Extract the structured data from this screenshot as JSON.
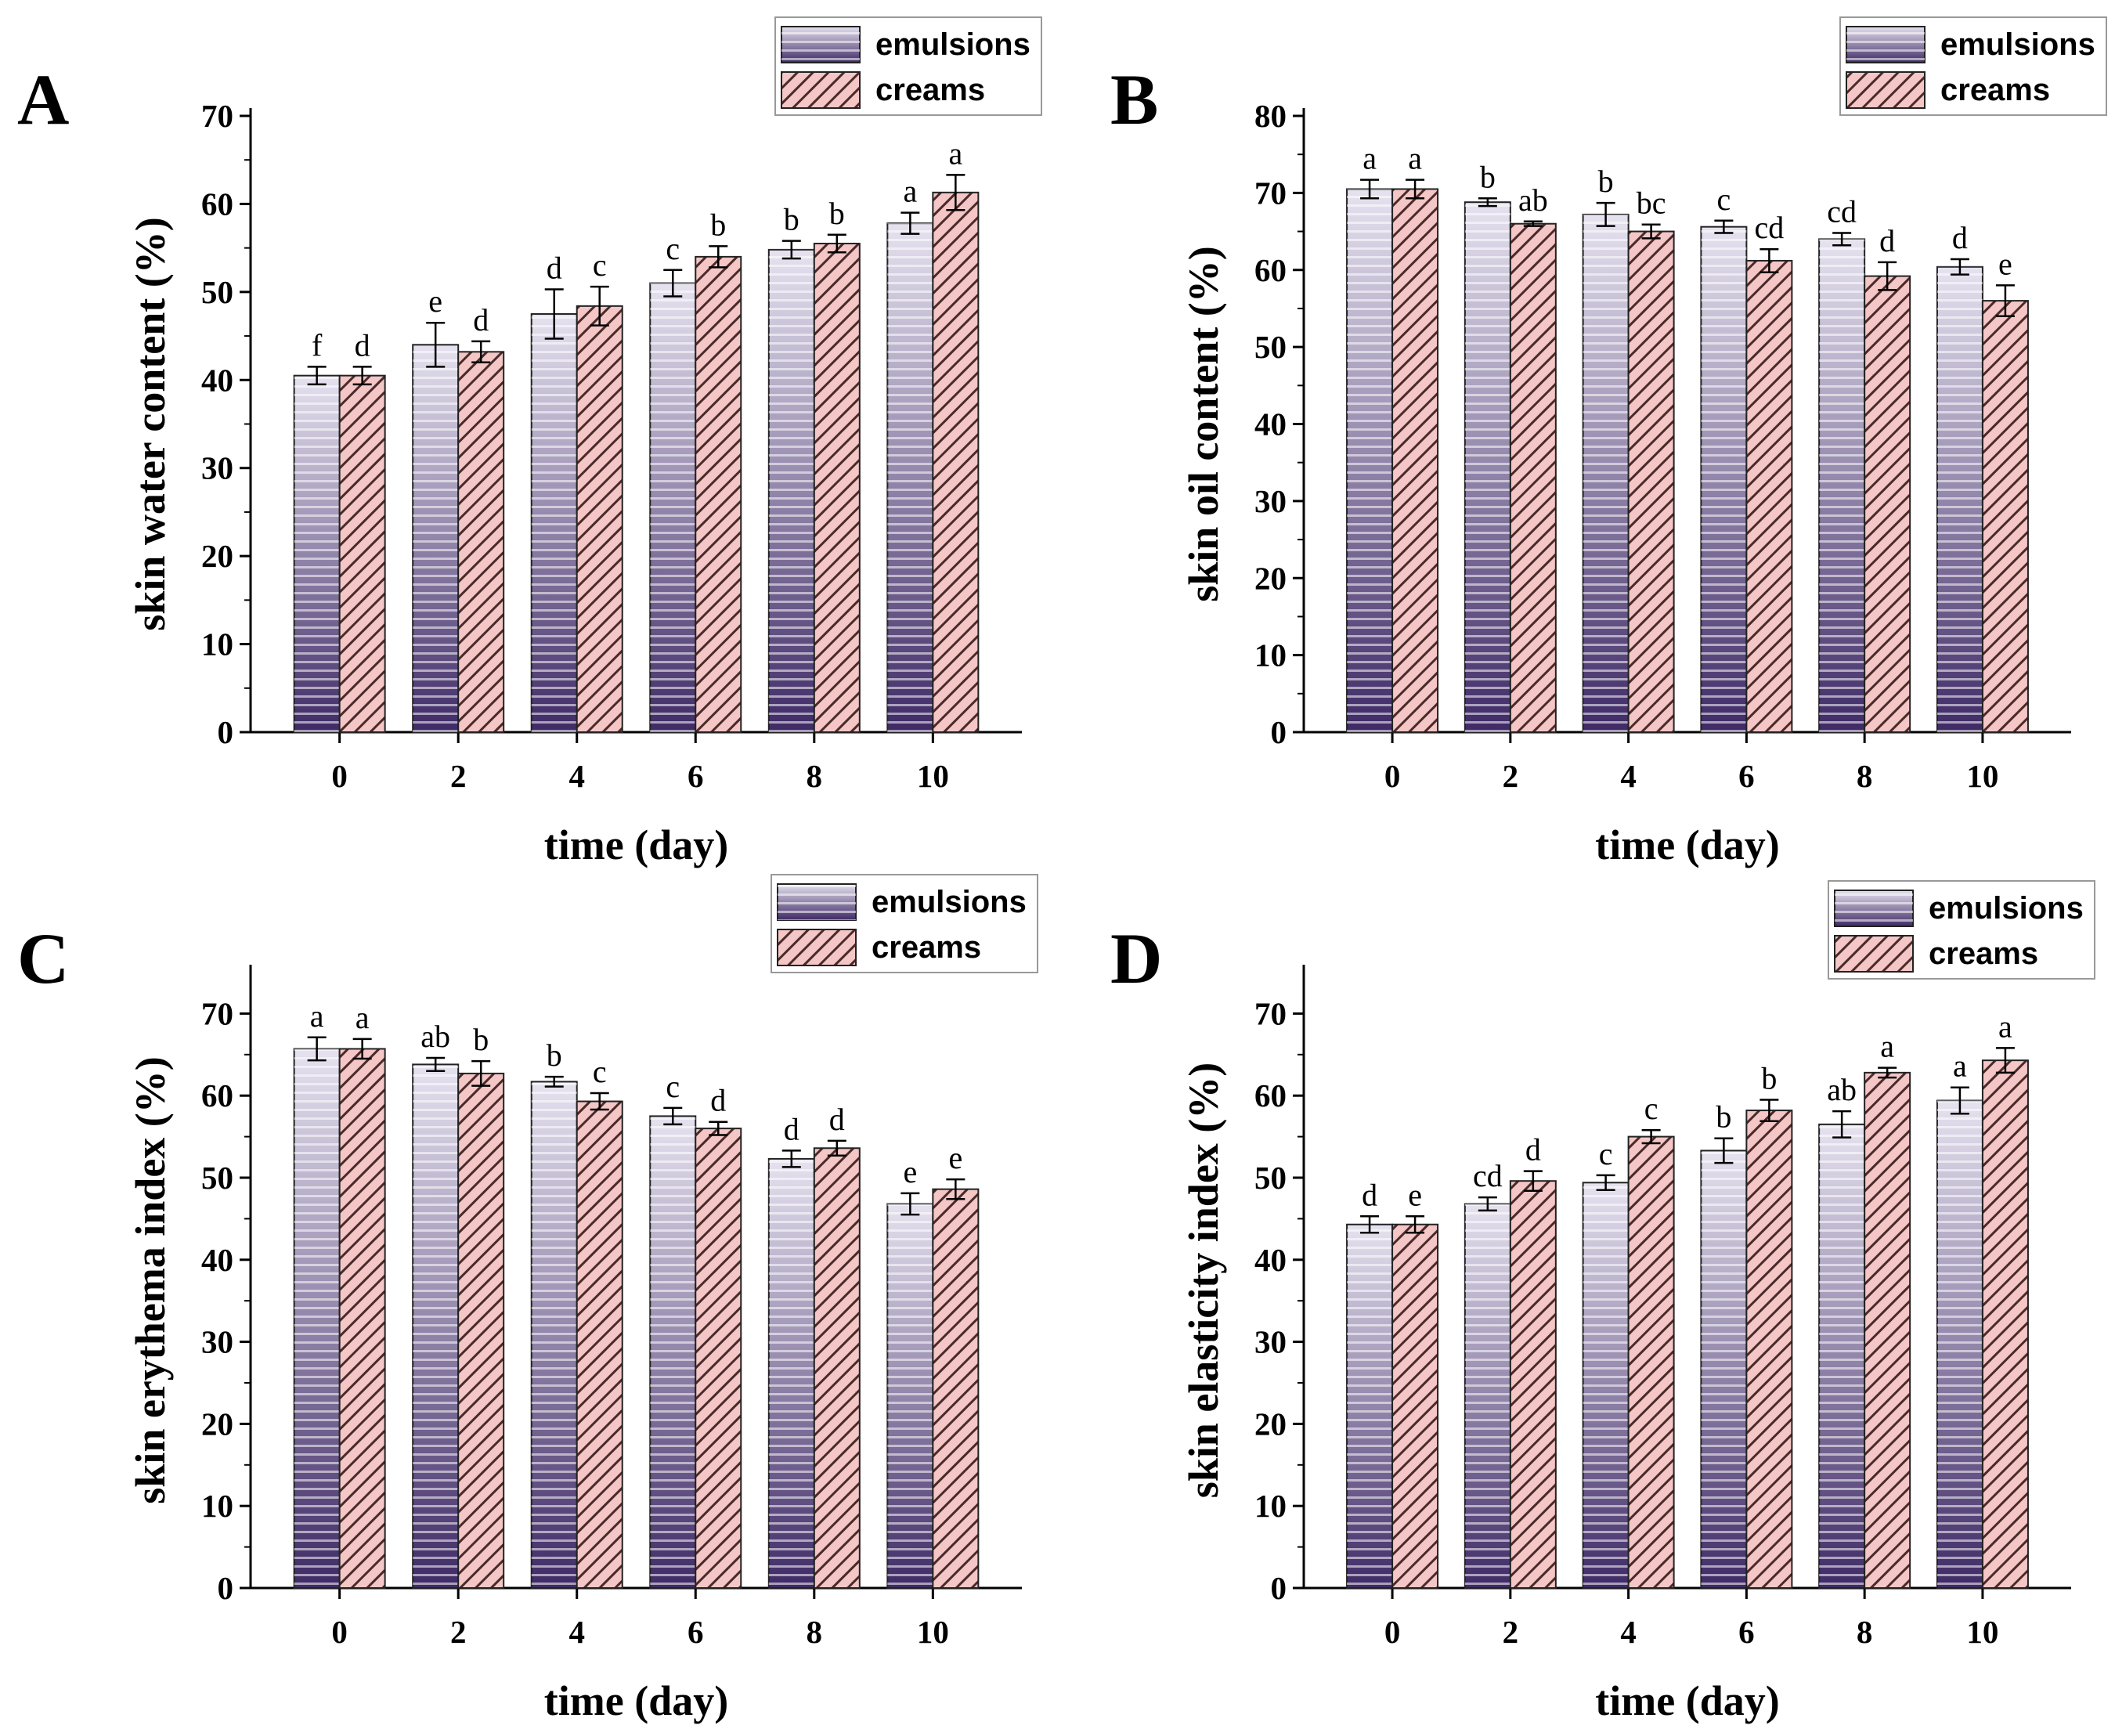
{
  "colors": {
    "emulsions_dark": "#3f2a66",
    "emulsions_light": "#e6e2ef",
    "creams_fill": "#f4c6c6",
    "creams_hatch": "#4a2a2a"
  },
  "legend": {
    "emulsions": "emulsions",
    "creams": "creams"
  },
  "chart_data": [
    {
      "panel": "A",
      "type": "bar",
      "xlabel": "time (day)",
      "ylabel": "skin water content (%)",
      "categories": [
        "0",
        "2",
        "4",
        "6",
        "8",
        "10"
      ],
      "ylim": [
        0,
        70
      ],
      "yticks": [
        0,
        10,
        20,
        30,
        40,
        50,
        60,
        70
      ],
      "legend_position": "top-right",
      "series": [
        {
          "name": "emulsions",
          "values": [
            40.5,
            44.0,
            47.5,
            51.0,
            54.8,
            57.8
          ],
          "errors": [
            1.0,
            2.5,
            2.8,
            1.5,
            1.0,
            1.2
          ],
          "labels": [
            "f",
            "e",
            "d",
            "c",
            "b",
            "a"
          ]
        },
        {
          "name": "creams",
          "values": [
            40.5,
            43.2,
            48.4,
            54.0,
            55.5,
            61.3
          ],
          "errors": [
            1.0,
            1.2,
            2.2,
            1.2,
            1.0,
            2.0
          ],
          "labels": [
            "d",
            "d",
            "c",
            "b",
            "b",
            "a"
          ]
        }
      ]
    },
    {
      "panel": "B",
      "type": "bar",
      "xlabel": "time (day)",
      "ylabel": "skin oil content (%)",
      "categories": [
        "0",
        "2",
        "4",
        "6",
        "8",
        "10"
      ],
      "ylim": [
        0,
        80
      ],
      "yticks": [
        0,
        10,
        20,
        30,
        40,
        50,
        60,
        70,
        80
      ],
      "legend_position": "top-right",
      "series": [
        {
          "name": "emulsions",
          "values": [
            70.5,
            68.8,
            67.2,
            65.6,
            64.0,
            60.4
          ],
          "errors": [
            1.2,
            0.5,
            1.5,
            0.8,
            0.8,
            1.0
          ],
          "labels": [
            "a",
            "b",
            "b",
            "c",
            "cd",
            "d"
          ]
        },
        {
          "name": "creams",
          "values": [
            70.5,
            66.0,
            65.0,
            61.2,
            59.2,
            56.0
          ],
          "errors": [
            1.2,
            0.3,
            0.9,
            1.5,
            1.8,
            2.0
          ],
          "labels": [
            "a",
            "ab",
            "bc",
            "cd",
            "d",
            "e"
          ]
        }
      ]
    },
    {
      "panel": "C",
      "type": "bar",
      "xlabel": "time (day)",
      "ylabel": "skin erythema index (%)",
      "categories": [
        "0",
        "2",
        "4",
        "6",
        "8",
        "10"
      ],
      "ylim": [
        0,
        75
      ],
      "yticks": [
        0,
        10,
        20,
        30,
        40,
        50,
        60,
        70
      ],
      "legend_position": "top-right",
      "series": [
        {
          "name": "emulsions",
          "values": [
            65.7,
            63.8,
            61.7,
            57.5,
            52.3,
            46.8
          ],
          "errors": [
            1.4,
            0.8,
            0.6,
            1.0,
            1.0,
            1.3
          ],
          "labels": [
            "a",
            "ab",
            "b",
            "c",
            "d",
            "e"
          ]
        },
        {
          "name": "creams",
          "values": [
            65.7,
            62.7,
            59.3,
            56.0,
            53.6,
            48.6
          ],
          "errors": [
            1.2,
            1.5,
            1.0,
            0.8,
            0.9,
            1.2
          ],
          "labels": [
            "a",
            "b",
            "c",
            "d",
            "d",
            "e"
          ]
        }
      ]
    },
    {
      "panel": "D",
      "type": "bar",
      "xlabel": "time (day)",
      "ylabel": "skin elasticity index (%)",
      "categories": [
        "0",
        "2",
        "4",
        "6",
        "8",
        "10"
      ],
      "ylim": [
        0,
        75
      ],
      "yticks": [
        0,
        10,
        20,
        30,
        40,
        50,
        60,
        70
      ],
      "legend_position": "top-right",
      "series": [
        {
          "name": "emulsions",
          "values": [
            44.3,
            46.8,
            49.4,
            53.3,
            56.5,
            59.4
          ],
          "errors": [
            1.0,
            0.8,
            0.9,
            1.5,
            1.6,
            1.6
          ],
          "labels": [
            "d",
            "cd",
            "c",
            "b",
            "ab",
            "a"
          ]
        },
        {
          "name": "creams",
          "values": [
            44.3,
            49.6,
            55.0,
            58.2,
            62.8,
            64.3
          ],
          "errors": [
            1.0,
            1.2,
            0.8,
            1.3,
            0.6,
            1.5
          ],
          "labels": [
            "e",
            "d",
            "c",
            "b",
            "a",
            "a"
          ]
        }
      ]
    }
  ]
}
